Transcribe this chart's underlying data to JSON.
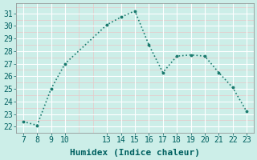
{
  "x": [
    7,
    8,
    9,
    10,
    13,
    14,
    15,
    16,
    17,
    18,
    19,
    20,
    21,
    22,
    23
  ],
  "y": [
    22.4,
    22.1,
    25.0,
    27.0,
    30.1,
    30.7,
    31.2,
    28.5,
    26.3,
    27.6,
    27.7,
    27.6,
    26.3,
    25.1,
    23.2
  ],
  "xticks": [
    7,
    8,
    9,
    10,
    13,
    14,
    15,
    16,
    17,
    18,
    19,
    20,
    21,
    22,
    23
  ],
  "yticks": [
    22,
    23,
    24,
    25,
    26,
    27,
    28,
    29,
    30,
    31
  ],
  "ylim": [
    21.5,
    31.8
  ],
  "xlim": [
    6.5,
    23.5
  ],
  "xlabel": "Humidex (Indice chaleur)",
  "line_color": "#1a7a6e",
  "marker_color": "#1a7a6e",
  "bg_color": "#cceee8",
  "grid_major_color": "#ffffff",
  "grid_minor_color": "#e8c8c8",
  "xlabel_fontsize": 8,
  "tick_fontsize": 7
}
